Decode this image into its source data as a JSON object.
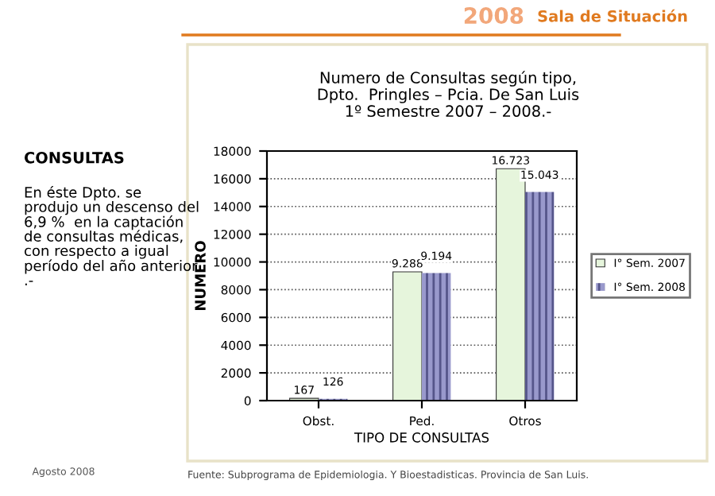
{
  "chart_data": {
    "type": "bar",
    "title": "Numero de Consultas según tipo,\nDpto.  Pringles – Pcia. De San Luis\n1º Semestre 2007 – 2008.-",
    "xlabel": "TIPO DE CONSULTAS",
    "ylabel": "NUMERO",
    "categories": [
      "Obst.",
      "Ped.",
      "Otros"
    ],
    "series": [
      {
        "name": "I° Sem. 2007",
        "color": "#e6f5dc",
        "values": [
          167,
          9288,
          16723
        ],
        "value_labels": [
          "167",
          "9.288",
          "16.723"
        ]
      },
      {
        "name": "I° Sem. 2008",
        "color": "#9999cc",
        "values": [
          126,
          9194,
          15043
        ],
        "value_labels": [
          "126",
          "9.194",
          "15.043"
        ]
      }
    ],
    "ylim": [
      0,
      18000
    ],
    "yticks": [
      0,
      2000,
      4000,
      6000,
      8000,
      10000,
      12000,
      14000,
      16000,
      18000
    ],
    "grid": "y",
    "legend": "right",
    "annotations": [
      "Sala de Situación",
      "2008",
      "CONSULTAS",
      "En éste Dpto. se produjo un descenso del 6,9 %  en la captación de consultas médicas, con respecto a igual período del año anterior .-",
      "Agosto 2008",
      "Fuente: Subprograma de Epidemiologia. Y Bioestadisticas. Provincia de San Luis."
    ]
  }
}
